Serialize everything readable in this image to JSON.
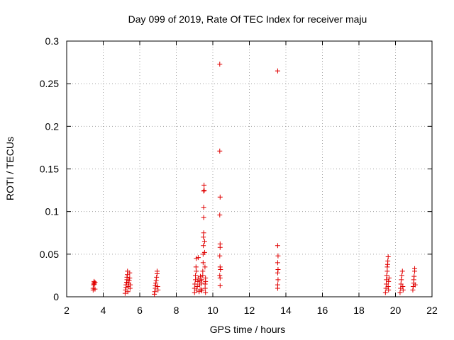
{
  "chart_data": {
    "type": "scatter",
    "title": "Day 099 of 2019, Rate Of TEC Index for receiver maju",
    "xlabel": "GPS time / hours",
    "ylabel": "ROTI / TECUs",
    "xlim": [
      2,
      22
    ],
    "ylim": [
      0,
      0.3
    ],
    "xticks": [
      2,
      4,
      6,
      8,
      10,
      12,
      14,
      16,
      18,
      20,
      22
    ],
    "xtick_labels": [
      "2",
      "4",
      "6",
      "8",
      "10",
      "12",
      "14",
      "16",
      "18",
      "20",
      "22"
    ],
    "yticks": [
      0,
      0.05,
      0.1,
      0.15,
      0.2,
      0.25,
      0.3
    ],
    "ytick_labels": [
      "0",
      "0.05",
      "0.1",
      "0.15",
      "0.2",
      "0.25",
      "0.3"
    ],
    "grid": true,
    "marker": "+",
    "marker_color": "#e00000",
    "series": [
      {
        "name": "ROTI",
        "points": [
          [
            3.45,
            0.008
          ],
          [
            3.45,
            0.01
          ],
          [
            3.47,
            0.014
          ],
          [
            3.48,
            0.016
          ],
          [
            3.5,
            0.018
          ],
          [
            3.52,
            0.015
          ],
          [
            3.55,
            0.017
          ],
          [
            3.55,
            0.009
          ],
          [
            5.2,
            0.004
          ],
          [
            5.22,
            0.008
          ],
          [
            5.25,
            0.011
          ],
          [
            5.25,
            0.014
          ],
          [
            5.28,
            0.017
          ],
          [
            5.3,
            0.02
          ],
          [
            5.3,
            0.023
          ],
          [
            5.32,
            0.026
          ],
          [
            5.33,
            0.03
          ],
          [
            5.35,
            0.006
          ],
          [
            5.37,
            0.012
          ],
          [
            5.4,
            0.016
          ],
          [
            5.42,
            0.019
          ],
          [
            5.45,
            0.022
          ],
          [
            5.45,
            0.028
          ],
          [
            5.47,
            0.01
          ],
          [
            5.48,
            0.014
          ],
          [
            6.8,
            0.003
          ],
          [
            6.82,
            0.006
          ],
          [
            6.85,
            0.01
          ],
          [
            6.85,
            0.013
          ],
          [
            6.88,
            0.016
          ],
          [
            6.9,
            0.019
          ],
          [
            6.92,
            0.023
          ],
          [
            6.95,
            0.027
          ],
          [
            6.95,
            0.03
          ],
          [
            6.98,
            0.012
          ],
          [
            7.0,
            0.008
          ],
          [
            9.0,
            0.005
          ],
          [
            9.0,
            0.01
          ],
          [
            9.02,
            0.015
          ],
          [
            9.05,
            0.02
          ],
          [
            9.05,
            0.025
          ],
          [
            9.08,
            0.035
          ],
          [
            9.1,
            0.045
          ],
          [
            9.1,
            0.03
          ],
          [
            9.12,
            0.008
          ],
          [
            9.15,
            0.012
          ],
          [
            9.18,
            0.018
          ],
          [
            9.2,
            0.022
          ],
          [
            9.2,
            0.046
          ],
          [
            9.25,
            0.006
          ],
          [
            9.28,
            0.014
          ],
          [
            9.3,
            0.019
          ],
          [
            9.32,
            0.024
          ],
          [
            9.35,
            0.009
          ],
          [
            9.38,
            0.016
          ],
          [
            9.4,
            0.02
          ],
          [
            9.4,
            0.007
          ],
          [
            9.45,
            0.025
          ],
          [
            9.45,
            0.03
          ],
          [
            9.47,
            0.04
          ],
          [
            9.47,
            0.05
          ],
          [
            9.48,
            0.06
          ],
          [
            9.48,
            0.07
          ],
          [
            9.5,
            0.075
          ],
          [
            9.5,
            0.093
          ],
          [
            9.5,
            0.105
          ],
          [
            9.5,
            0.124
          ],
          [
            9.52,
            0.131
          ],
          [
            9.53,
            0.125
          ],
          [
            9.55,
            0.065
          ],
          [
            9.55,
            0.052
          ],
          [
            9.57,
            0.035
          ],
          [
            9.58,
            0.015
          ],
          [
            9.58,
            0.01
          ],
          [
            9.6,
            0.005
          ],
          [
            9.6,
            0.018
          ],
          [
            9.6,
            0.022
          ],
          [
            10.38,
            0.273
          ],
          [
            10.38,
            0.171
          ],
          [
            10.4,
            0.117
          ],
          [
            10.38,
            0.096
          ],
          [
            10.4,
            0.062
          ],
          [
            10.4,
            0.058
          ],
          [
            10.38,
            0.048
          ],
          [
            10.4,
            0.035
          ],
          [
            10.42,
            0.032
          ],
          [
            10.38,
            0.025
          ],
          [
            10.4,
            0.022
          ],
          [
            10.4,
            0.013
          ],
          [
            13.55,
            0.265
          ],
          [
            13.55,
            0.06
          ],
          [
            13.57,
            0.048
          ],
          [
            13.55,
            0.04
          ],
          [
            13.57,
            0.032
          ],
          [
            13.55,
            0.028
          ],
          [
            13.57,
            0.02
          ],
          [
            13.55,
            0.014
          ],
          [
            13.55,
            0.01
          ],
          [
            19.45,
            0.005
          ],
          [
            19.48,
            0.01
          ],
          [
            19.5,
            0.015
          ],
          [
            19.5,
            0.02
          ],
          [
            19.52,
            0.025
          ],
          [
            19.55,
            0.03
          ],
          [
            19.55,
            0.035
          ],
          [
            19.57,
            0.038
          ],
          [
            19.58,
            0.042
          ],
          [
            19.6,
            0.047
          ],
          [
            19.6,
            0.012
          ],
          [
            19.62,
            0.008
          ],
          [
            19.62,
            0.018
          ],
          [
            19.65,
            0.022
          ],
          [
            20.25,
            0.005
          ],
          [
            20.28,
            0.01
          ],
          [
            20.3,
            0.015
          ],
          [
            20.32,
            0.02
          ],
          [
            20.35,
            0.025
          ],
          [
            20.38,
            0.03
          ],
          [
            20.4,
            0.012
          ],
          [
            20.42,
            0.008
          ],
          [
            20.95,
            0.008
          ],
          [
            20.97,
            0.012
          ],
          [
            21.0,
            0.016
          ],
          [
            21.0,
            0.02
          ],
          [
            21.02,
            0.024
          ],
          [
            21.05,
            0.03
          ],
          [
            21.05,
            0.033
          ],
          [
            21.08,
            0.014
          ]
        ]
      }
    ]
  }
}
